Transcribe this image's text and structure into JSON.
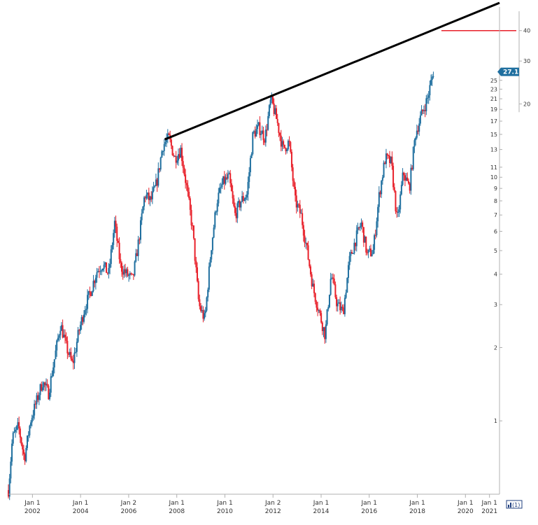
{
  "chart_data": {
    "type": "candlestick",
    "scale": "log",
    "up_color": "#1f6f9f",
    "down_color": "#e8202a",
    "trendline_color": "#000000",
    "level_color": "#e8202a",
    "price_badge_color": "#1f6f9f",
    "price_badge_label": "27.1",
    "legend_label": "(1)",
    "ylim": [
      0.5,
      50
    ],
    "xlim": [
      "2001-01-01",
      "2021-06-01"
    ],
    "y_ticks": [
      "1",
      "2",
      "3",
      "4",
      "5",
      "6",
      "7",
      "8",
      "9",
      "10",
      "11",
      "13",
      "15",
      "17",
      "19",
      "21",
      "23",
      "25"
    ],
    "y_ticks_right": [
      "20",
      "30",
      "40"
    ],
    "x_ticks": [
      {
        "top": "Jan 1",
        "bottom": "2002"
      },
      {
        "top": "Jan 1",
        "bottom": "2004"
      },
      {
        "top": "Jan 2",
        "bottom": "2006"
      },
      {
        "top": "Jan 1",
        "bottom": "2008"
      },
      {
        "top": "Jan 1",
        "bottom": "2010"
      },
      {
        "top": "Jan 2",
        "bottom": "2012"
      },
      {
        "top": "Jan 1",
        "bottom": "2014"
      },
      {
        "top": "Jan 1",
        "bottom": "2016"
      },
      {
        "top": "Jan 1",
        "bottom": "2018"
      },
      {
        "top": "Jan 1",
        "bottom": "2020"
      },
      {
        "top": "Jan 1",
        "bottom": "2021"
      }
    ],
    "price_path": [
      [
        "2001-01",
        0.52
      ],
      [
        "2001-03",
        0.85
      ],
      [
        "2001-06",
        0.95
      ],
      [
        "2001-09",
        0.7
      ],
      [
        "2001-12",
        1.0
      ],
      [
        "2002-03",
        1.2
      ],
      [
        "2002-06",
        1.45
      ],
      [
        "2002-09",
        1.3
      ],
      [
        "2002-12",
        1.8
      ],
      [
        "2003-03",
        2.5
      ],
      [
        "2003-06",
        2.0
      ],
      [
        "2003-09",
        1.7
      ],
      [
        "2003-12",
        2.3
      ],
      [
        "2004-03",
        2.9
      ],
      [
        "2004-06",
        3.4
      ],
      [
        "2004-09",
        4.1
      ],
      [
        "2004-12",
        4.4
      ],
      [
        "2005-03",
        4.0
      ],
      [
        "2005-06",
        6.5
      ],
      [
        "2005-09",
        4.3
      ],
      [
        "2005-12",
        4.0
      ],
      [
        "2006-03",
        3.8
      ],
      [
        "2006-06",
        5.5
      ],
      [
        "2006-09",
        8.5
      ],
      [
        "2006-12",
        8.0
      ],
      [
        "2007-03",
        9.5
      ],
      [
        "2007-06",
        13.5
      ],
      [
        "2007-09",
        14.5
      ],
      [
        "2007-12",
        12.0
      ],
      [
        "2008-03",
        13.0
      ],
      [
        "2008-06",
        9.0
      ],
      [
        "2008-09",
        6.0
      ],
      [
        "2008-12",
        3.0
      ],
      [
        "2009-03",
        2.6
      ],
      [
        "2009-06",
        5.0
      ],
      [
        "2009-09",
        8.0
      ],
      [
        "2009-12",
        9.5
      ],
      [
        "2010-03",
        10.0
      ],
      [
        "2010-06",
        7.0
      ],
      [
        "2010-09",
        8.0
      ],
      [
        "2010-12",
        8.5
      ],
      [
        "2011-03",
        15.0
      ],
      [
        "2011-06",
        16.0
      ],
      [
        "2011-09",
        14.5
      ],
      [
        "2011-12",
        21.0
      ],
      [
        "2012-03",
        17.0
      ],
      [
        "2012-06",
        13.0
      ],
      [
        "2012-09",
        14.0
      ],
      [
        "2012-12",
        8.0
      ],
      [
        "2013-03",
        7.0
      ],
      [
        "2013-06",
        5.0
      ],
      [
        "2013-09",
        3.5
      ],
      [
        "2013-12",
        2.8
      ],
      [
        "2014-03",
        2.25
      ],
      [
        "2014-06",
        4.0
      ],
      [
        "2014-09",
        3.0
      ],
      [
        "2014-12",
        2.8
      ],
      [
        "2015-03",
        4.5
      ],
      [
        "2015-06",
        5.5
      ],
      [
        "2015-09",
        6.5
      ],
      [
        "2015-12",
        4.8
      ],
      [
        "2016-03",
        5.0
      ],
      [
        "2016-06",
        8.5
      ],
      [
        "2016-09",
        12.0
      ],
      [
        "2016-12",
        11.5
      ],
      [
        "2017-03",
        6.5
      ],
      [
        "2017-06",
        10.5
      ],
      [
        "2017-09",
        9.0
      ],
      [
        "2017-12",
        15.0
      ],
      [
        "2018-03",
        18.0
      ],
      [
        "2018-06",
        21.0
      ],
      [
        "2018-09",
        27.1
      ]
    ],
    "trendline": {
      "start": [
        "2007-07",
        14.3
      ],
      "end": [
        "2021-06",
        52.0
      ]
    },
    "resistance_level": {
      "value": 40,
      "from": "2019-01",
      "to": "2021-06"
    }
  }
}
